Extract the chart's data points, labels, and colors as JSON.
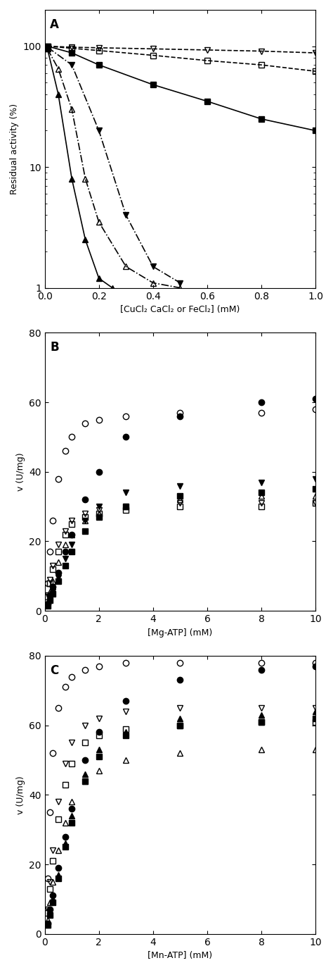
{
  "panel_A": {
    "title": "A",
    "xlabel": "[CuCl₂ CaCl₂ or FeCl₂] (mM)",
    "ylabel": "Residual activity (%)",
    "xmin": 0,
    "xmax": 1.0,
    "ymin": 1,
    "ymax": 200,
    "series": [
      {
        "name": "filled_triangle_up_solid",
        "marker": "^",
        "filled": true,
        "linestyle": "-",
        "color": "black",
        "x": [
          0.01,
          0.05,
          0.1,
          0.15,
          0.2,
          0.25
        ],
        "y": [
          95,
          40,
          8,
          2.5,
          1.2,
          1.0
        ]
      },
      {
        "name": "open_triangle_up_dashdot",
        "marker": "^",
        "filled": false,
        "linestyle": "-.",
        "color": "black",
        "x": [
          0.01,
          0.05,
          0.1,
          0.15,
          0.2,
          0.3,
          0.4,
          0.5
        ],
        "y": [
          95,
          65,
          30,
          8,
          3.5,
          1.5,
          1.1,
          1.0
        ]
      },
      {
        "name": "filled_triangle_down_dashdot",
        "marker": "v",
        "filled": true,
        "linestyle": "-.",
        "color": "black",
        "x": [
          0.01,
          0.1,
          0.2,
          0.3,
          0.4,
          0.5
        ],
        "y": [
          98,
          70,
          20,
          4,
          1.5,
          1.1
        ]
      },
      {
        "name": "filled_square_solid",
        "marker": "s",
        "filled": true,
        "linestyle": "-",
        "color": "black",
        "x": [
          0.01,
          0.1,
          0.2,
          0.4,
          0.6,
          0.8,
          1.0
        ],
        "y": [
          100,
          88,
          70,
          48,
          35,
          25,
          20
        ]
      },
      {
        "name": "open_square_dashed",
        "marker": "s",
        "filled": false,
        "linestyle": "--",
        "color": "black",
        "x": [
          0.01,
          0.1,
          0.2,
          0.4,
          0.6,
          0.8,
          1.0
        ],
        "y": [
          100,
          96,
          92,
          84,
          76,
          70,
          62
        ]
      },
      {
        "name": "open_triangle_down_dashed",
        "marker": "v",
        "filled": false,
        "linestyle": "--",
        "color": "black",
        "x": [
          0.01,
          0.1,
          0.2,
          0.4,
          0.6,
          0.8,
          1.0
        ],
        "y": [
          100,
          98,
          97,
          95,
          93,
          91,
          88
        ]
      }
    ]
  },
  "panel_B": {
    "title": "B",
    "xlabel": "[Mg-ATP] (mM)",
    "ylabel": "v (U/mg)",
    "xmin": 0,
    "xmax": 10,
    "ymin": 0,
    "ymax": 80,
    "series": [
      {
        "name": "filled_circle_solid",
        "marker": "o",
        "filled": true,
        "linestyle": "-",
        "color": "black",
        "vmax": 65,
        "km": 2.5,
        "x": [
          0.1,
          0.2,
          0.3,
          0.5,
          0.75,
          1.0,
          1.5,
          2.0,
          3.0,
          5.0,
          8.0,
          10.0
        ],
        "y": [
          2.0,
          4.5,
          7.0,
          11,
          17,
          22,
          32,
          40,
          50,
          56,
          60,
          61
        ]
      },
      {
        "name": "open_circle_dashed",
        "marker": "o",
        "filled": false,
        "linestyle": "--",
        "color": "black",
        "vmax": 58,
        "km": 0.5,
        "x": [
          0.1,
          0.2,
          0.3,
          0.5,
          0.75,
          1.0,
          1.5,
          2.0,
          3.0,
          5.0,
          8.0,
          10.0
        ],
        "y": [
          8,
          17,
          26,
          38,
          46,
          50,
          54,
          55,
          56,
          57,
          57,
          58
        ]
      },
      {
        "name": "filled_triangle_down_solid",
        "marker": "v",
        "filled": true,
        "linestyle": "-",
        "color": "black",
        "vmax": 38,
        "km": 1.2,
        "x": [
          0.1,
          0.2,
          0.3,
          0.5,
          0.75,
          1.0,
          1.5,
          2.0,
          3.0,
          5.0,
          8.0,
          10.0
        ],
        "y": [
          1.5,
          3.5,
          5.5,
          9.5,
          15,
          19,
          26,
          30,
          34,
          36,
          37,
          38
        ]
      },
      {
        "name": "filled_square_solid",
        "marker": "s",
        "filled": true,
        "linestyle": "-",
        "color": "black",
        "vmax": 35,
        "km": 1.2,
        "x": [
          0.1,
          0.2,
          0.3,
          0.5,
          0.75,
          1.0,
          1.5,
          2.0,
          3.0,
          5.0,
          8.0,
          10.0
        ],
        "y": [
          1.5,
          3.0,
          5.0,
          8.5,
          13,
          17,
          23,
          27,
          30,
          33,
          34,
          35
        ]
      },
      {
        "name": "open_triangle_down_dashed",
        "marker": "v",
        "filled": false,
        "linestyle": "--",
        "color": "black",
        "vmax": 31,
        "km": 0.4,
        "x": [
          0.1,
          0.2,
          0.3,
          0.5,
          0.75,
          1.0,
          1.5,
          2.0,
          3.0,
          5.0,
          8.0,
          10.0
        ],
        "y": [
          4.5,
          9.0,
          13,
          19,
          23,
          26,
          28,
          29,
          30,
          31,
          31,
          31
        ]
      },
      {
        "name": "open_square_dashed",
        "marker": "s",
        "filled": false,
        "linestyle": "--",
        "color": "black",
        "vmax": 31,
        "km": 0.5,
        "x": [
          0.1,
          0.2,
          0.3,
          0.5,
          0.75,
          1.0,
          1.5,
          2.0,
          3.0,
          5.0,
          8.0,
          10.0
        ],
        "y": [
          4.0,
          8.0,
          12,
          17,
          22,
          25,
          27,
          28,
          29,
          30,
          30,
          31
        ]
      },
      {
        "name": "open_triangle_up_dashdot",
        "marker": "^",
        "filled": false,
        "linestyle": "-.",
        "color": "black",
        "vmax": 33,
        "km": 0.9,
        "x": [
          0.1,
          0.2,
          0.3,
          0.5,
          0.75,
          1.0,
          1.5,
          2.0,
          3.0,
          5.0,
          8.0,
          10.0
        ],
        "y": [
          2.5,
          5.5,
          8.5,
          14,
          19,
          22,
          26,
          28,
          30,
          32,
          33,
          33
        ]
      }
    ]
  },
  "panel_C": {
    "title": "C",
    "xlabel": "[Mn-ATP] (mM)",
    "ylabel": "v (U/mg)",
    "xmin": 0,
    "xmax": 10,
    "ymin": 0,
    "ymax": 80,
    "series": [
      {
        "name": "filled_circle_solid",
        "marker": "o",
        "filled": true,
        "linestyle": "-",
        "color": "black",
        "vmax": 78,
        "km": 2.0,
        "x": [
          0.1,
          0.2,
          0.3,
          0.5,
          0.75,
          1.0,
          1.5,
          2.0,
          3.0,
          5.0,
          8.0,
          10.0
        ],
        "y": [
          3.0,
          7.0,
          11,
          19,
          28,
          36,
          50,
          58,
          67,
          73,
          76,
          77
        ]
      },
      {
        "name": "open_circle_dashed",
        "marker": "o",
        "filled": false,
        "linestyle": "--",
        "color": "black",
        "vmax": 78,
        "km": 0.3,
        "x": [
          0.1,
          0.2,
          0.3,
          0.5,
          0.75,
          1.0,
          1.5,
          2.0,
          3.0,
          5.0,
          8.0,
          10.0
        ],
        "y": [
          16,
          35,
          52,
          65,
          71,
          74,
          76,
          77,
          78,
          78,
          78,
          78
        ]
      },
      {
        "name": "filled_triangle_up_solid",
        "marker": "^",
        "filled": true,
        "linestyle": "-",
        "color": "black",
        "vmax": 65,
        "km": 1.8,
        "x": [
          0.1,
          0.2,
          0.3,
          0.5,
          0.75,
          1.0,
          1.5,
          2.0,
          3.0,
          5.0,
          8.0,
          10.0
        ],
        "y": [
          2.5,
          6.0,
          10,
          17,
          26,
          34,
          46,
          53,
          58,
          62,
          63,
          64
        ]
      },
      {
        "name": "filled_square_solid",
        "marker": "s",
        "filled": true,
        "linestyle": "-",
        "color": "black",
        "vmax": 63,
        "km": 1.8,
        "x": [
          0.1,
          0.2,
          0.3,
          0.5,
          0.75,
          1.0,
          1.5,
          2.0,
          3.0,
          5.0,
          8.0,
          10.0
        ],
        "y": [
          2.5,
          5.5,
          9.0,
          16,
          25,
          32,
          44,
          51,
          57,
          60,
          61,
          62
        ]
      },
      {
        "name": "open_triangle_down_dashed",
        "marker": "v",
        "filled": false,
        "linestyle": "--",
        "color": "black",
        "vmax": 66,
        "km": 0.6,
        "x": [
          0.1,
          0.2,
          0.3,
          0.5,
          0.75,
          1.0,
          1.5,
          2.0,
          3.0,
          5.0,
          8.0,
          10.0
        ],
        "y": [
          7,
          15,
          24,
          38,
          49,
          55,
          60,
          62,
          64,
          65,
          65,
          65
        ]
      },
      {
        "name": "open_square_dashed",
        "marker": "s",
        "filled": false,
        "linestyle": "--",
        "color": "black",
        "vmax": 62,
        "km": 0.7,
        "x": [
          0.1,
          0.2,
          0.3,
          0.5,
          0.75,
          1.0,
          1.5,
          2.0,
          3.0,
          5.0,
          8.0,
          10.0
        ],
        "y": [
          6,
          13,
          21,
          33,
          43,
          49,
          55,
          57,
          59,
          60,
          61,
          61
        ]
      },
      {
        "name": "open_triangle_up_dashed",
        "marker": "^",
        "filled": false,
        "linestyle": "--",
        "color": "black",
        "vmax": 53,
        "km": 0.8,
        "x": [
          0.1,
          0.2,
          0.3,
          0.5,
          0.75,
          1.0,
          1.5,
          2.0,
          3.0,
          5.0,
          8.0,
          10.0
        ],
        "y": [
          4,
          9,
          15,
          24,
          32,
          38,
          44,
          47,
          50,
          52,
          53,
          53
        ]
      }
    ]
  }
}
